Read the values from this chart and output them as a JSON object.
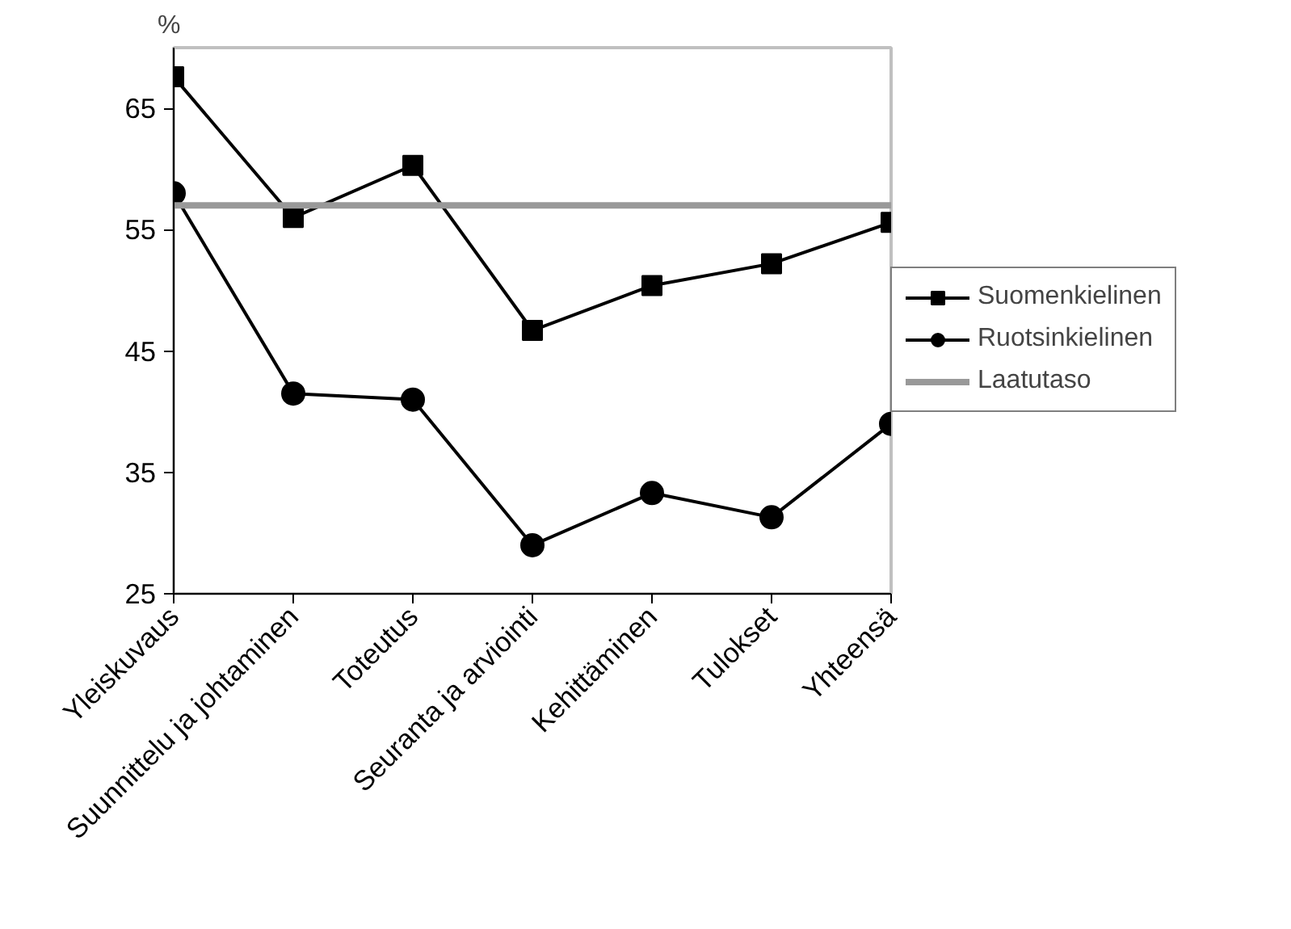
{
  "chart_data": {
    "type": "line",
    "ylabel": "%",
    "categories": [
      "Yleiskuvaus",
      "Suunnittelu ja johtaminen",
      "Toteutus",
      "Seuranta ja arviointi",
      "Kehittäminen",
      "Tulokset",
      "Yhteensä"
    ],
    "series": [
      {
        "name": "Suomenkielinen",
        "color": "#000000",
        "marker": "square",
        "values": [
          67.6,
          56.0,
          60.3,
          46.7,
          50.4,
          52.2,
          55.6
        ]
      },
      {
        "name": "Ruotsinkielinen",
        "color": "#000000",
        "marker": "circle",
        "values": [
          58.0,
          41.5,
          41.0,
          29.0,
          33.3,
          31.3,
          39.0
        ]
      },
      {
        "name": "Laatutaso",
        "color": "#999999",
        "marker": "none",
        "values": [
          57.0,
          57.0,
          57.0,
          57.0,
          57.0,
          57.0,
          57.0
        ]
      }
    ],
    "ylim": [
      25,
      70
    ],
    "yticks": [
      25,
      35,
      45,
      55,
      65
    ],
    "grid": false,
    "legend": "right",
    "line_style": "solid"
  }
}
